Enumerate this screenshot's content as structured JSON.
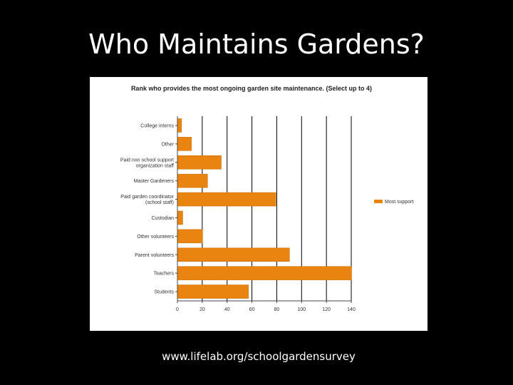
{
  "slide": {
    "title": "Who Maintains Gardens?",
    "footer_url": "www.lifelab.org/schoolgardensurvey"
  },
  "colors": {
    "background": "#000000",
    "panel": "#ffffff",
    "bar": "#e8840f",
    "bar_edge": "#c96d05"
  },
  "chart_data": {
    "type": "bar",
    "orientation": "horizontal",
    "title": "Rank who provides the most ongoing garden site maintenance. (Select up to 4)",
    "categories": [
      "College interns",
      "Other",
      "Paid non school support organization staff",
      "Master Gardeners",
      "Paid garden coordinator (school staff)",
      "Custodian",
      "Other volunteers",
      "Parent volunteers",
      "Teachers",
      "Students"
    ],
    "series": [
      {
        "name": "Most support",
        "values": [
          3,
          11,
          35,
          24,
          79,
          4,
          20,
          90,
          140,
          57
        ]
      }
    ],
    "xlim": [
      0,
      140
    ],
    "xticks": [
      0,
      20,
      40,
      60,
      80,
      100,
      120,
      140
    ],
    "grid": true,
    "legend_position": "right"
  }
}
